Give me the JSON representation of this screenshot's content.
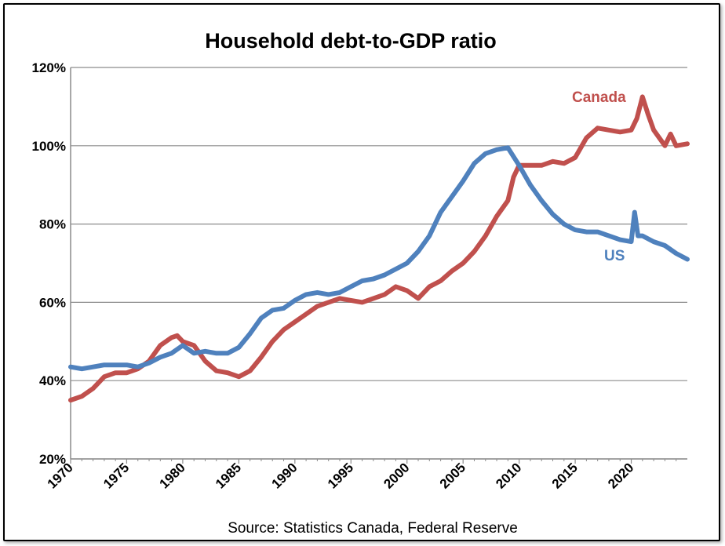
{
  "chart_data": {
    "type": "line",
    "title": "Household debt-to-GDP ratio",
    "source": "Source:  Statistics Canada, Federal Reserve",
    "xlim": [
      1970,
      2025
    ],
    "ylim": [
      20,
      120
    ],
    "x_ticks": [
      "1970",
      "1975",
      "1980",
      "1985",
      "1990",
      "1995",
      "2000",
      "2005",
      "2010",
      "2015",
      "2020"
    ],
    "y_ticks": [
      {
        "value": 20,
        "label": "20%"
      },
      {
        "value": 40,
        "label": "40%"
      },
      {
        "value": 60,
        "label": "60%"
      },
      {
        "value": 80,
        "label": "80%"
      },
      {
        "value": 100,
        "label": "100%"
      },
      {
        "value": 120,
        "label": "120%"
      }
    ],
    "grid": true,
    "series": [
      {
        "name": "Canada",
        "color": "#c0504d",
        "points": [
          [
            1970,
            35
          ],
          [
            1971,
            36
          ],
          [
            1972,
            38
          ],
          [
            1973,
            41
          ],
          [
            1974,
            42
          ],
          [
            1975,
            42
          ],
          [
            1976,
            43
          ],
          [
            1977,
            45
          ],
          [
            1978,
            49
          ],
          [
            1979,
            51
          ],
          [
            1979.5,
            51.5
          ],
          [
            1980,
            50
          ],
          [
            1981,
            49
          ],
          [
            1982,
            45
          ],
          [
            1983,
            42.5
          ],
          [
            1984,
            42
          ],
          [
            1985,
            41
          ],
          [
            1986,
            42.5
          ],
          [
            1987,
            46
          ],
          [
            1988,
            50
          ],
          [
            1989,
            53
          ],
          [
            1990,
            55
          ],
          [
            1991,
            57
          ],
          [
            1992,
            59
          ],
          [
            1993,
            60
          ],
          [
            1994,
            61
          ],
          [
            1995,
            60.5
          ],
          [
            1996,
            60
          ],
          [
            1997,
            61
          ],
          [
            1998,
            62
          ],
          [
            1999,
            64
          ],
          [
            2000,
            63
          ],
          [
            2001,
            61
          ],
          [
            2002,
            64
          ],
          [
            2003,
            65.5
          ],
          [
            2004,
            68
          ],
          [
            2005,
            70
          ],
          [
            2006,
            73
          ],
          [
            2007,
            77
          ],
          [
            2008,
            82
          ],
          [
            2009,
            86
          ],
          [
            2009.5,
            92
          ],
          [
            2010,
            95
          ],
          [
            2011,
            95
          ],
          [
            2012,
            95
          ],
          [
            2013,
            96
          ],
          [
            2014,
            95.5
          ],
          [
            2015,
            97
          ],
          [
            2016,
            102
          ],
          [
            2017,
            104.5
          ],
          [
            2018,
            104
          ],
          [
            2019,
            103.5
          ],
          [
            2020,
            104
          ],
          [
            2020.5,
            107
          ],
          [
            2021,
            112.5
          ],
          [
            2021.5,
            108
          ],
          [
            2022,
            104
          ],
          [
            2023,
            100
          ],
          [
            2023.5,
            103
          ],
          [
            2024,
            100
          ],
          [
            2025,
            100.5
          ]
        ]
      },
      {
        "name": "US",
        "color": "#4f81bd",
        "points": [
          [
            1970,
            43.5
          ],
          [
            1971,
            43
          ],
          [
            1972,
            43.5
          ],
          [
            1973,
            44
          ],
          [
            1974,
            44
          ],
          [
            1975,
            44
          ],
          [
            1976,
            43.5
          ],
          [
            1977,
            44.5
          ],
          [
            1978,
            46
          ],
          [
            1979,
            47
          ],
          [
            1980,
            49
          ],
          [
            1981,
            47
          ],
          [
            1982,
            47.5
          ],
          [
            1983,
            47
          ],
          [
            1984,
            47
          ],
          [
            1985,
            48.5
          ],
          [
            1986,
            52
          ],
          [
            1987,
            56
          ],
          [
            1988,
            58
          ],
          [
            1989,
            58.5
          ],
          [
            1990,
            60.5
          ],
          [
            1991,
            62
          ],
          [
            1992,
            62.5
          ],
          [
            1993,
            62
          ],
          [
            1994,
            62.5
          ],
          [
            1995,
            64
          ],
          [
            1996,
            65.5
          ],
          [
            1997,
            66
          ],
          [
            1998,
            67
          ],
          [
            1999,
            68.5
          ],
          [
            2000,
            70
          ],
          [
            2001,
            73
          ],
          [
            2002,
            77
          ],
          [
            2003,
            83
          ],
          [
            2004,
            87
          ],
          [
            2005,
            91
          ],
          [
            2006,
            95.5
          ],
          [
            2007,
            98
          ],
          [
            2008,
            99
          ],
          [
            2009,
            99.5
          ],
          [
            2010,
            95
          ],
          [
            2011,
            90
          ],
          [
            2012,
            86
          ],
          [
            2013,
            82.5
          ],
          [
            2014,
            80
          ],
          [
            2015,
            78.5
          ],
          [
            2016,
            78
          ],
          [
            2017,
            78
          ],
          [
            2018,
            77
          ],
          [
            2019,
            76
          ],
          [
            2020,
            75.5
          ],
          [
            2020.3,
            83
          ],
          [
            2020.6,
            77
          ],
          [
            2021,
            77
          ],
          [
            2022,
            75.5
          ],
          [
            2023,
            74.5
          ],
          [
            2024,
            72.5
          ],
          [
            2025,
            71
          ]
        ]
      }
    ],
    "labels": {
      "canada": "Canada",
      "us": "US"
    }
  }
}
